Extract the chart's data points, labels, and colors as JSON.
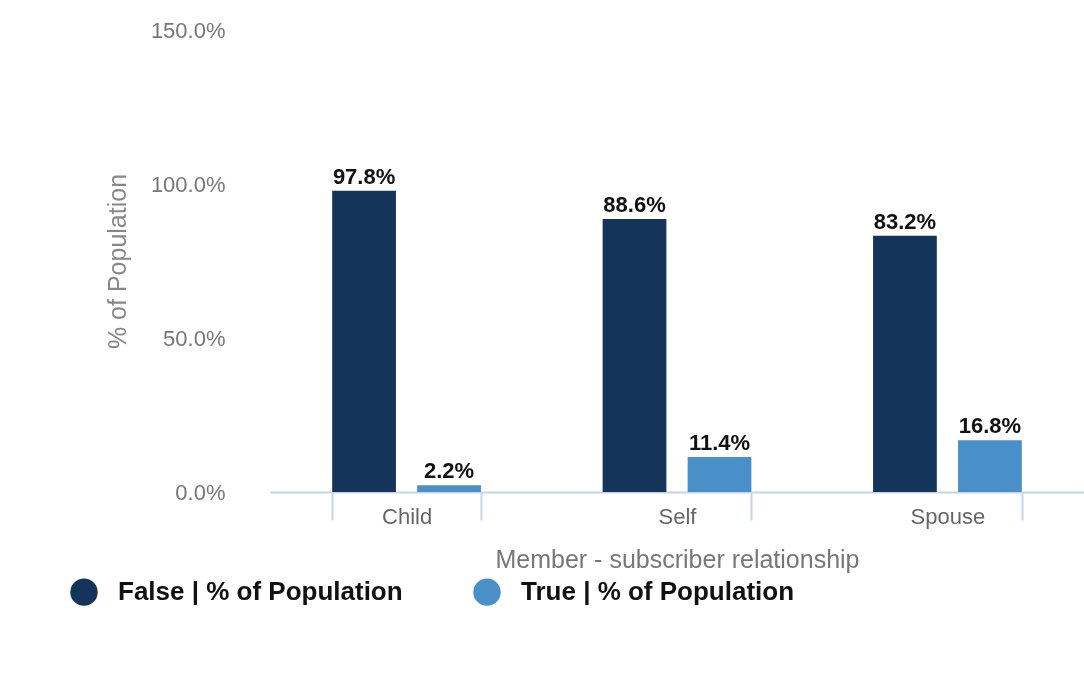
{
  "chart_data": {
    "type": "bar",
    "xlabel": "Member - subscriber relationship",
    "ylabel": "% of Population",
    "categories": [
      "Child",
      "Self",
      "Spouse"
    ],
    "series": [
      {
        "name": "False | % of Population",
        "color": "#14345a",
        "values": [
          97.8,
          88.6,
          83.2
        ],
        "value_labels": [
          "97.8%",
          "88.6%",
          "83.2%"
        ]
      },
      {
        "name": "True | % of Population",
        "color": "#4a90c8",
        "values": [
          2.2,
          11.4,
          16.8
        ],
        "value_labels": [
          "2.2%",
          "11.4%",
          "16.8%"
        ]
      }
    ],
    "ylim": [
      0,
      150
    ],
    "yticks": [
      {
        "value": 0,
        "label": "0.0%"
      },
      {
        "value": 50,
        "label": "50.0%"
      },
      {
        "value": 100,
        "label": "100.0%"
      },
      {
        "value": 150,
        "label": "150.0%"
      }
    ],
    "grid": false,
    "legend": "bottom"
  }
}
